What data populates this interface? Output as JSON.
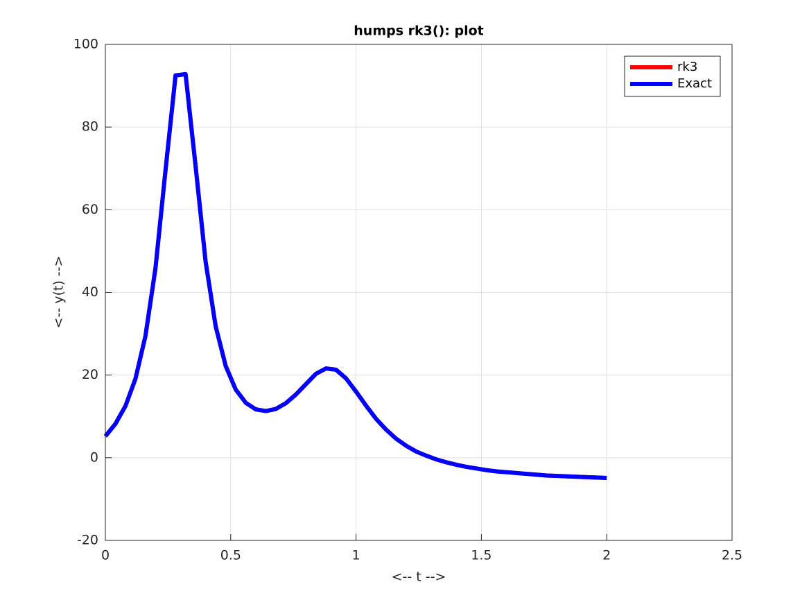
{
  "chart_data": {
    "type": "line",
    "title": "humps rk3(): plot",
    "xlabel": "<-- t -->",
    "ylabel": "<-- y(t) -->",
    "x": [
      0,
      0.04,
      0.08,
      0.12,
      0.16,
      0.2,
      0.24,
      0.28,
      0.32,
      0.36,
      0.4,
      0.44,
      0.48,
      0.52,
      0.56,
      0.6,
      0.64,
      0.68,
      0.72,
      0.76,
      0.8,
      0.84,
      0.88,
      0.92,
      0.96,
      1,
      1.04,
      1.08,
      1.12,
      1.16,
      1.2,
      1.24,
      1.28,
      1.32,
      1.36,
      1.4,
      1.44,
      1.48,
      1.52,
      1.56,
      1.6,
      1.64,
      1.68,
      1.72,
      1.76,
      1.8,
      1.84,
      1.88,
      1.92,
      1.96,
      2
    ],
    "series": [
      {
        "name": "rk3",
        "color": "#ff0000",
        "values": [
          5.2,
          8.2,
          12.5,
          19.1,
          29.5,
          45.9,
          69.6,
          92.5,
          92.8,
          70.5,
          47.4,
          31.8,
          22.2,
          16.5,
          13.3,
          11.7,
          11.3,
          11.8,
          13.2,
          15.3,
          17.8,
          20.3,
          21.6,
          21.3,
          19.2,
          16.0,
          12.6,
          9.4,
          6.8,
          4.6,
          2.9,
          1.5,
          0.5,
          -0.4,
          -1.1,
          -1.7,
          -2.2,
          -2.6,
          -3.0,
          -3.3,
          -3.5,
          -3.7,
          -3.9,
          -4.1,
          -4.3,
          -4.4,
          -4.5,
          -4.6,
          -4.7,
          -4.8,
          -4.9
        ]
      },
      {
        "name": "Exact",
        "color": "#0000ff",
        "values": [
          5.2,
          8.2,
          12.5,
          19.1,
          29.5,
          45.9,
          69.6,
          92.5,
          92.8,
          70.5,
          47.4,
          31.8,
          22.2,
          16.5,
          13.3,
          11.7,
          11.3,
          11.8,
          13.2,
          15.3,
          17.8,
          20.3,
          21.6,
          21.3,
          19.2,
          16.0,
          12.6,
          9.4,
          6.8,
          4.6,
          2.9,
          1.5,
          0.5,
          -0.4,
          -1.1,
          -1.7,
          -2.2,
          -2.6,
          -3.0,
          -3.3,
          -3.5,
          -3.7,
          -3.9,
          -4.1,
          -4.3,
          -4.4,
          -4.5,
          -4.6,
          -4.7,
          -4.8,
          -4.9
        ]
      }
    ],
    "xlim": [
      0,
      2.5
    ],
    "xticks": [
      0,
      0.5,
      1,
      1.5,
      2,
      2.5
    ],
    "ylim": [
      -20,
      100
    ],
    "yticks": [
      -20,
      0,
      20,
      40,
      60,
      80,
      100
    ],
    "grid": true,
    "legend": "top-right"
  }
}
